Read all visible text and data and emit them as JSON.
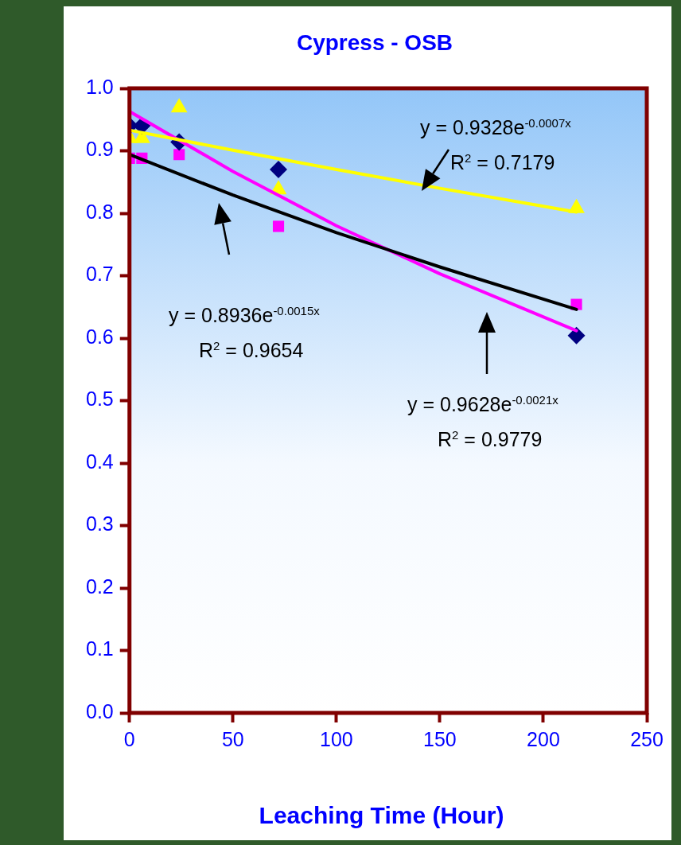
{
  "chart_data": {
    "type": "scatter",
    "title": "Cypress - OSB",
    "xlabel": "Leaching Time (Hour)",
    "xlim": [
      0,
      250
    ],
    "xticks": [
      0,
      50,
      100,
      150,
      200,
      250
    ],
    "ylim": [
      0,
      1
    ],
    "yticks": [
      {
        "value": 0,
        "label": "0.0"
      },
      {
        "value": 0.1,
        "label": "0.1"
      },
      {
        "value": 0.2,
        "label": "0.2"
      },
      {
        "value": 0.3,
        "label": "0.3"
      },
      {
        "value": 0.4,
        "label": "0.4"
      },
      {
        "value": 0.5,
        "label": "0.5"
      },
      {
        "value": 0.6,
        "label": "0.6"
      },
      {
        "value": 0.7,
        "label": "0.7"
      },
      {
        "value": 0.8,
        "label": "0.8"
      },
      {
        "value": 0.9,
        "label": "0.9"
      },
      {
        "value": 1,
        "label": "1.0"
      }
    ],
    "legend": false,
    "series": [
      {
        "type": "scatter",
        "marker": "diamond",
        "color": "#000080",
        "x": [
          0,
          6,
          24,
          72,
          216
        ],
        "values": [
          0.94,
          0.94,
          0.914,
          0.87,
          0.604
        ]
      },
      {
        "type": "scatter",
        "marker": "square",
        "color": "#ff00ff",
        "x": [
          0,
          6,
          24,
          72,
          216
        ],
        "values": [
          0.888,
          0.888,
          0.894,
          0.779,
          0.654
        ]
      },
      {
        "type": "scatter",
        "marker": "triangle",
        "color": "#ffff00",
        "x": [
          0,
          6,
          24,
          72,
          216
        ],
        "values": [
          0.92,
          0.92,
          0.969,
          0.838,
          0.808
        ]
      },
      {
        "type": "line",
        "marker": "none",
        "color": "#ffff00",
        "x": [
          0,
          50,
          100,
          150,
          216
        ],
        "values": [
          0.933,
          0.901,
          0.87,
          0.84,
          0.802
        ]
      },
      {
        "type": "line",
        "marker": "none",
        "color": "#000000",
        "x": [
          0,
          50,
          100,
          150,
          216
        ],
        "values": [
          0.894,
          0.829,
          0.769,
          0.714,
          0.646
        ]
      },
      {
        "type": "line",
        "marker": "none",
        "color": "#ff00ff",
        "x": [
          0,
          50,
          100,
          150,
          216
        ],
        "values": [
          0.963,
          0.867,
          0.78,
          0.703,
          0.612
        ]
      }
    ],
    "annotations": [
      "y = 0.9328e$^{-0.0007x}$",
      "R$^{2}$ = 0.7179",
      "y = 0.8936e$^{-0.0015x}$",
      "R$^{2}$ = 0.9654",
      "y = 0.9628e$^{-0.0021x}$",
      "R$^{2}$ = 0.9779"
    ]
  }
}
